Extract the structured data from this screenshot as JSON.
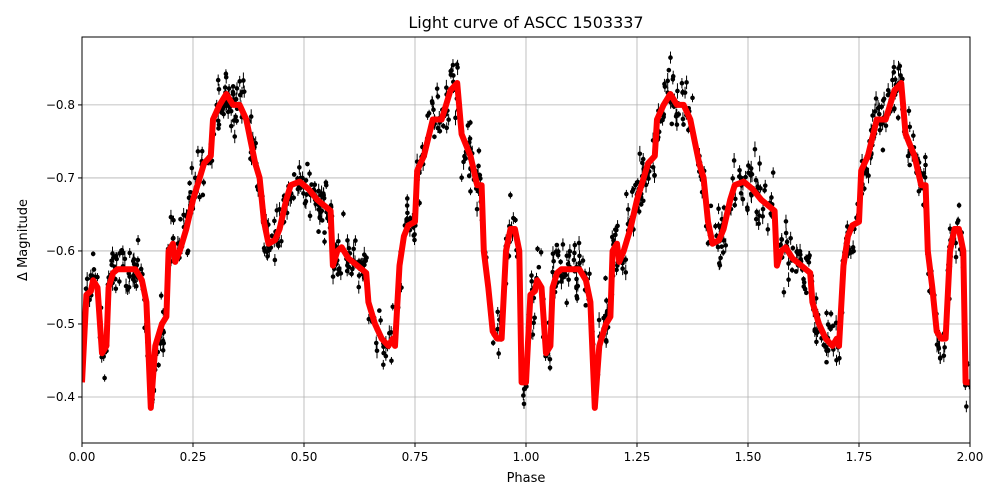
{
  "chart_data": {
    "type": "scatter",
    "title": "Light curve of ASCC 1503337",
    "xlabel": "Phase",
    "ylabel": "Δ Magnitude",
    "xlim": [
      0.0,
      2.0
    ],
    "ylim": [
      -0.893,
      -0.337
    ],
    "y_inverted": true,
    "grid": true,
    "xticks": [
      "0.00",
      "0.25",
      "0.50",
      "0.75",
      "1.00",
      "1.25",
      "1.50",
      "1.75",
      "2.00"
    ],
    "xtick_values": [
      0,
      0.25,
      0.5,
      0.75,
      1.0,
      1.25,
      1.5,
      1.75,
      2.0
    ],
    "yticks": [
      "−0.8",
      "−0.7",
      "−0.6",
      "−0.5",
      "−0.4"
    ],
    "ytick_values": [
      -0.8,
      -0.7,
      -0.6,
      -0.5,
      -0.4
    ],
    "series": [
      {
        "role": "observations",
        "color": "#000000",
        "marker": "dot with error bars",
        "scatter_about_model": 0.035
      },
      {
        "role": "model",
        "color": "#ff0000",
        "phase_period": 1.0,
        "phase": [
          0,
          0.01,
          0.02,
          0.025,
          0.035,
          0.045,
          0.055,
          0.06,
          0.07,
          0.08,
          0.1,
          0.12,
          0.135,
          0.145,
          0.155,
          0.165,
          0.18,
          0.19,
          0.195,
          0.205,
          0.21,
          0.22,
          0.235,
          0.25,
          0.265,
          0.275,
          0.29,
          0.295,
          0.31,
          0.325,
          0.34,
          0.355,
          0.37,
          0.38,
          0.39,
          0.4,
          0.41,
          0.42,
          0.435,
          0.445,
          0.46,
          0.47,
          0.49,
          0.51,
          0.53,
          0.56,
          0.565,
          0.575,
          0.585,
          0.6,
          0.62,
          0.64,
          0.645,
          0.66,
          0.675,
          0.69,
          0.7,
          0.705,
          0.715,
          0.725,
          0.735,
          0.75,
          0.755,
          0.77,
          0.79,
          0.81,
          0.82,
          0.83,
          0.845,
          0.855,
          0.875,
          0.89,
          0.9,
          0.905,
          0.915,
          0.925,
          0.935,
          0.945,
          0.955,
          0.965,
          0.975,
          0.985,
          0.99,
          1.0
        ],
        "magnitude": [
          -0.42,
          -0.54,
          -0.545,
          -0.56,
          -0.55,
          -0.46,
          -0.47,
          -0.55,
          -0.57,
          -0.575,
          -0.575,
          -0.575,
          -0.56,
          -0.53,
          -0.385,
          -0.47,
          -0.5,
          -0.51,
          -0.6,
          -0.61,
          -0.585,
          -0.6,
          -0.63,
          -0.67,
          -0.7,
          -0.72,
          -0.73,
          -0.78,
          -0.8,
          -0.815,
          -0.8,
          -0.8,
          -0.78,
          -0.75,
          -0.72,
          -0.7,
          -0.64,
          -0.61,
          -0.615,
          -0.63,
          -0.67,
          -0.69,
          -0.695,
          -0.685,
          -0.67,
          -0.655,
          -0.58,
          -0.6,
          -0.605,
          -0.59,
          -0.58,
          -0.57,
          -0.53,
          -0.5,
          -0.48,
          -0.47,
          -0.48,
          -0.47,
          -0.58,
          -0.62,
          -0.635,
          -0.64,
          -0.71,
          -0.73,
          -0.78,
          -0.78,
          -0.8,
          -0.82,
          -0.83,
          -0.76,
          -0.73,
          -0.69,
          -0.69,
          -0.6,
          -0.55,
          -0.49,
          -0.48,
          -0.48,
          -0.6,
          -0.63,
          -0.63,
          -0.6,
          -0.42,
          -0.42
        ]
      }
    ]
  }
}
